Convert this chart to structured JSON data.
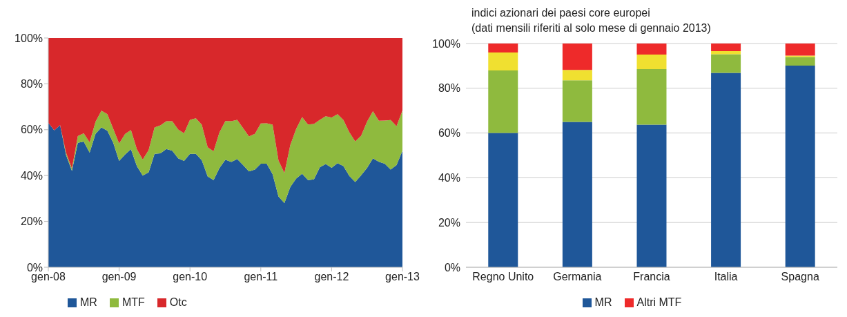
{
  "chart_data": [
    {
      "type": "area",
      "stacked": true,
      "x": [
        "2008-01",
        "2008-02",
        "2008-03",
        "2008-04",
        "2008-05",
        "2008-06",
        "2008-07",
        "2008-08",
        "2008-09",
        "2008-10",
        "2008-11",
        "2008-12",
        "2009-01",
        "2009-02",
        "2009-03",
        "2009-04",
        "2009-05",
        "2009-06",
        "2009-07",
        "2009-08",
        "2009-09",
        "2009-10",
        "2009-11",
        "2009-12",
        "2010-01",
        "2010-02",
        "2010-03",
        "2010-04",
        "2010-05",
        "2010-06",
        "2010-07",
        "2010-08",
        "2010-09",
        "2010-10",
        "2010-11",
        "2010-12",
        "2011-01",
        "2011-02",
        "2011-03",
        "2011-04",
        "2011-05",
        "2011-06",
        "2011-07",
        "2011-08",
        "2011-09",
        "2011-10",
        "2011-11",
        "2011-12",
        "2012-01",
        "2012-02",
        "2012-03",
        "2012-04",
        "2012-05",
        "2012-06",
        "2012-07",
        "2012-08",
        "2012-09",
        "2012-10",
        "2012-11",
        "2012-12",
        "2013-01"
      ],
      "series": [
        {
          "name": "MR",
          "color": "#1f5799",
          "values": [
            63,
            59.7,
            62,
            49,
            42,
            54.3,
            54.8,
            50,
            58.2,
            61,
            59.6,
            54.3,
            46.4,
            49.2,
            51.5,
            44.1,
            40,
            41.4,
            49.5,
            49.7,
            51.6,
            50.8,
            47.5,
            46.4,
            49.5,
            49.5,
            46.7,
            39.6,
            38,
            43.3,
            46.9,
            45.9,
            47.2,
            44.6,
            41.8,
            42.6,
            45.2,
            45.2,
            40.6,
            30.9,
            28,
            35,
            38.7,
            40.8,
            38,
            38.3,
            43.6,
            45,
            43.4,
            45.4,
            44.1,
            39.8,
            37.2,
            40.1,
            43.3,
            47.5,
            46,
            45.2,
            42.6,
            44.6,
            50.8
          ]
        },
        {
          "name": "MTF",
          "color": "#8fba3e",
          "values": [
            0,
            0,
            0,
            1,
            1.1,
            2.9,
            3.6,
            4.5,
            5.3,
            7.3,
            7.2,
            6.1,
            7.6,
            8.9,
            8.4,
            7.4,
            7,
            9.7,
            11.5,
            12.2,
            12.1,
            12.9,
            12.6,
            12,
            14.8,
            15.5,
            15.5,
            12.7,
            12.6,
            15.6,
            16.9,
            17.8,
            17.1,
            16.1,
            15.3,
            15.6,
            17.5,
            17.6,
            21.6,
            15.6,
            13.1,
            18.3,
            21.7,
            24.7,
            24.3,
            24.2,
            20.7,
            20.9,
            21.9,
            21.4,
            20.1,
            19.1,
            17.7,
            17.3,
            20.2,
            20.6,
            17.9,
            18.8,
            21.6,
            16.9,
            17.6
          ]
        },
        {
          "name": "Otc",
          "color": "#d8282b",
          "values": [
            37,
            40.3,
            38,
            50,
            56.9,
            42.8,
            41.6,
            45.5,
            36.5,
            31.7,
            33.2,
            39.6,
            46,
            41.9,
            40.1,
            48.5,
            53,
            48.9,
            39,
            38.1,
            36.3,
            36.3,
            39.9,
            41.6,
            35.7,
            35,
            37.8,
            47.7,
            49.4,
            41.1,
            36.2,
            36.3,
            35.7,
            39.3,
            42.9,
            41.8,
            37.3,
            37.2,
            37.8,
            53.5,
            58.9,
            46.7,
            39.6,
            34.5,
            37.7,
            37.5,
            35.7,
            34.1,
            34.7,
            33.2,
            35.8,
            41.1,
            45.1,
            42.6,
            36.5,
            31.9,
            36.1,
            36,
            35.8,
            38.5,
            31.6
          ]
        }
      ],
      "xlim": [
        "2008-01",
        "2013-01"
      ],
      "xticks": [
        {
          "value": "2008-01",
          "label": "gen-08"
        },
        {
          "value": "2009-01",
          "label": "gen-09"
        },
        {
          "value": "2010-01",
          "label": "gen-10"
        },
        {
          "value": "2011-01",
          "label": "gen-11"
        },
        {
          "value": "2012-01",
          "label": "gen-12"
        },
        {
          "value": "2013-01",
          "label": "gen-13"
        }
      ],
      "ylim": [
        0,
        100
      ],
      "yticks": [
        {
          "value": 0,
          "label": "0%"
        },
        {
          "value": 20,
          "label": "20%"
        },
        {
          "value": 40,
          "label": "40%"
        },
        {
          "value": 60,
          "label": "60%"
        },
        {
          "value": 80,
          "label": "80%"
        },
        {
          "value": 100,
          "label": "100%"
        }
      ],
      "grid": false,
      "legend": "bottom left"
    },
    {
      "type": "bar",
      "stacked": true,
      "title": "indici azionari dei paesi core europei",
      "subtitle": "(dati mensili riferiti al solo mese di gennaio 2013)",
      "categories": [
        "Regno Unito",
        "Germania",
        "Francia",
        "Italia",
        "Spagna"
      ],
      "series": [
        {
          "name": "MR",
          "color": "#1f5799",
          "values": [
            60,
            65,
            63.7,
            86.9,
            90.1
          ]
        },
        {
          "color": "#8fba3e",
          "values": [
            28,
            18.6,
            24.9,
            8.3,
            3.9
          ]
        },
        {
          "color": "#f0e030",
          "values": [
            8,
            4.6,
            6.5,
            1.4,
            0.6
          ]
        },
        {
          "name": "Altri MTF",
          "color": "#ee2a2a",
          "values": [
            4,
            11.8,
            4.9,
            3.4,
            5.4
          ]
        }
      ],
      "ylim": [
        0,
        100
      ],
      "yticks": [
        {
          "value": 0,
          "label": "0%"
        },
        {
          "value": 20,
          "label": "20%"
        },
        {
          "value": 40,
          "label": "40%"
        },
        {
          "value": 60,
          "label": "60%"
        },
        {
          "value": 80,
          "label": "80%"
        },
        {
          "value": 100,
          "label": "100%"
        }
      ],
      "grid": "y",
      "legend": "bottom"
    }
  ]
}
